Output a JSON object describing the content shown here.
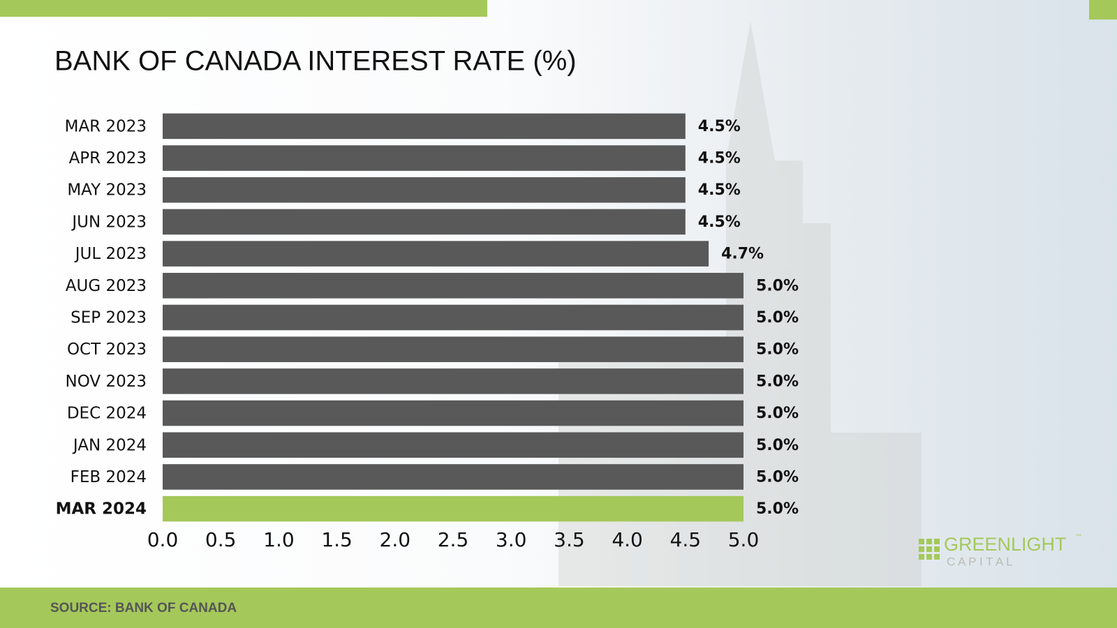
{
  "chart_data": {
    "type": "hbar",
    "title": "BANK OF CANADA INTEREST RATE (%)",
    "categories": [
      "MAR 2023",
      "APR 2023",
      "MAY 2023",
      "JUN 2023",
      "JUL 2023",
      "AUG 2023",
      "SEP 2023",
      "OCT 2023",
      "NOV 2023",
      "DEC 2024",
      "JAN 2024",
      "FEB 2024",
      "MAR 2024"
    ],
    "values": [
      4.5,
      4.5,
      4.5,
      4.5,
      4.7,
      5.0,
      5.0,
      5.0,
      5.0,
      5.0,
      5.0,
      5.0,
      5.0
    ],
    "value_labels": [
      "4.5%",
      "4.5%",
      "4.5%",
      "4.5%",
      "4.7%",
      "5.0%",
      "5.0%",
      "5.0%",
      "5.0%",
      "5.0%",
      "5.0%",
      "5.0%",
      "5.0%"
    ],
    "colors": [
      "#595959",
      "#595959",
      "#595959",
      "#595959",
      "#595959",
      "#595959",
      "#595959",
      "#595959",
      "#595959",
      "#595959",
      "#595959",
      "#595959",
      "#a5c85a"
    ],
    "xlim": [
      0,
      5
    ],
    "xticks": [
      {
        "value": 0,
        "label": "0.0"
      },
      {
        "value": 0.5,
        "label": "0.5"
      },
      {
        "value": 1,
        "label": "1.0"
      },
      {
        "value": 1.5,
        "label": "1.5"
      },
      {
        "value": 2,
        "label": "2.0"
      },
      {
        "value": 2.5,
        "label": "2.5"
      },
      {
        "value": 3,
        "label": "3.0"
      },
      {
        "value": 3.5,
        "label": "3.5"
      },
      {
        "value": 4,
        "label": "4.0"
      },
      {
        "value": 4.5,
        "label": "4.5"
      },
      {
        "value": 5,
        "label": "5.0"
      }
    ],
    "grid": false,
    "source": "SOURCE: BANK OF CANADA",
    "logo": {
      "name": "GREENLIGHT",
      "sub": "C A P I T A L",
      "tm": "™"
    }
  }
}
